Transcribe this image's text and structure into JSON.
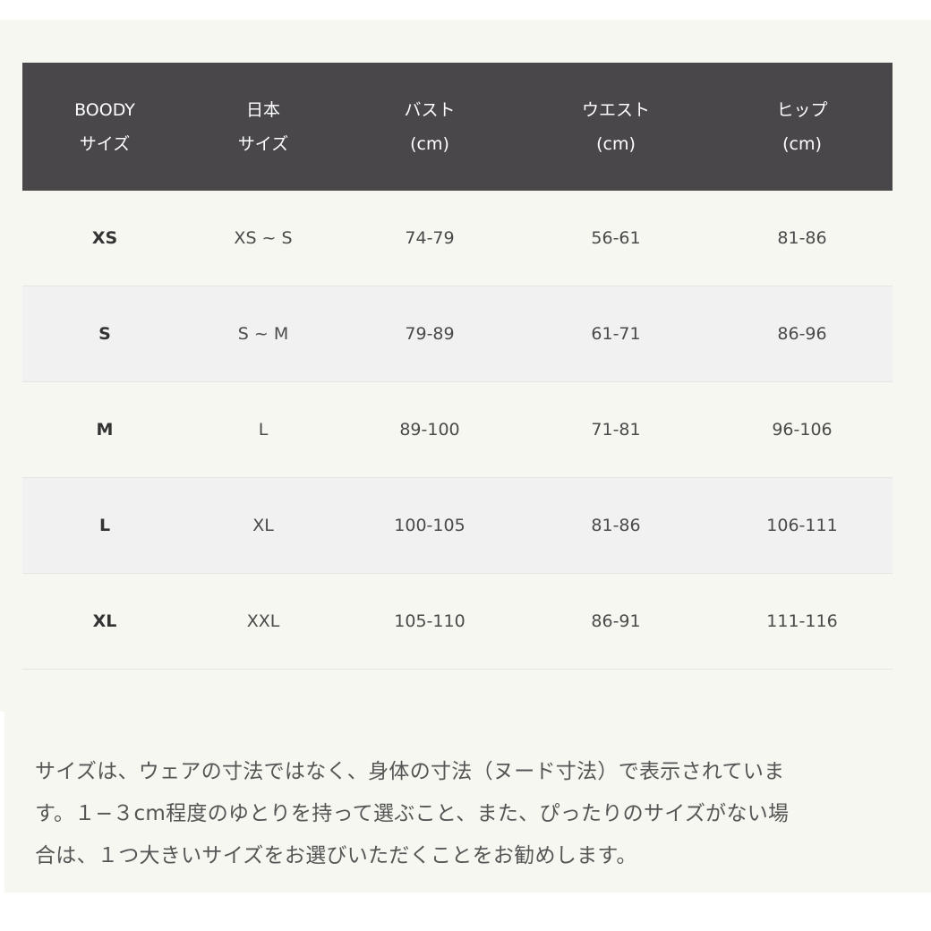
{
  "table": {
    "headers": [
      [
        "BOODY",
        "サイズ"
      ],
      [
        "日本",
        "サイズ"
      ],
      [
        "バスト",
        "(cm)"
      ],
      [
        "ウエスト",
        "(cm)"
      ],
      [
        "ヒップ",
        "(cm)"
      ]
    ],
    "rows": [
      [
        "XS",
        "XS ~ S",
        "74-79",
        "56-61",
        "81-86"
      ],
      [
        "S",
        "S ~ M",
        "79-89",
        "61-71",
        "86-96"
      ],
      [
        "M",
        "L",
        "89-100",
        "71-81",
        "96-106"
      ],
      [
        "L",
        "XL",
        "100-105",
        "81-86",
        "106-111"
      ],
      [
        "XL",
        "XXL",
        "105-110",
        "86-91",
        "111-116"
      ]
    ]
  },
  "note": {
    "lines": [
      "サイズは、ウェアの寸法ではなく、身体の寸法（ヌード寸法）で表示されていま",
      "す。１−３cm程度のゆとりを持って選ぶこと、また、ぴったりのサイズがない場",
      "合は、１つ大きいサイズをお選びいただくことをお勧めします。"
    ]
  },
  "colors": {
    "header_bg": "#49474a",
    "panel_bg": "#f7f7f2",
    "alt_row_bg": "#f1f1f1"
  }
}
